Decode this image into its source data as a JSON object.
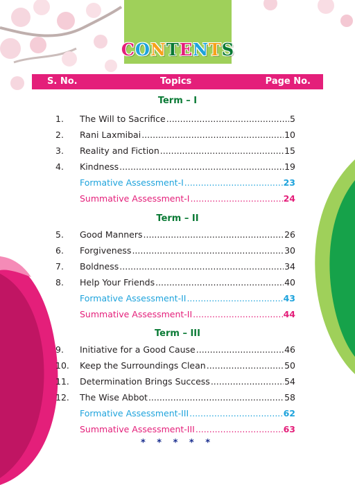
{
  "title": {
    "text": "CONTENTS",
    "letter_colors": [
      "#e41f7a",
      "#1ea3dc",
      "#f7a21b",
      "#0a7a35",
      "#e41f7a",
      "#1ea3dc",
      "#f7a21b",
      "#0a7a35"
    ]
  },
  "header": {
    "sno": "S. No.",
    "topics": "Topics",
    "page": "Page No."
  },
  "terms": [
    {
      "label": "Term – I",
      "rows": [
        {
          "num": "1.",
          "topic": "The Will to Sacrifice",
          "page": "5",
          "style": "normal"
        },
        {
          "num": "2.",
          "topic": "Rani Laxmibai",
          "page": "10",
          "style": "normal"
        },
        {
          "num": "3.",
          "topic": "Reality and Fiction",
          "page": "15",
          "style": "normal"
        },
        {
          "num": "4.",
          "topic": "Kindness",
          "page": "19",
          "style": "normal"
        },
        {
          "num": "",
          "topic": "Formative Assessment-I",
          "page": "23",
          "style": "fa"
        },
        {
          "num": "",
          "topic": "Summative Assessment-I",
          "page": "24",
          "style": "sa"
        }
      ]
    },
    {
      "label": "Term – II",
      "rows": [
        {
          "num": "5.",
          "topic": "Good Manners",
          "page": "26",
          "style": "normal"
        },
        {
          "num": "6.",
          "topic": "Forgiveness",
          "page": "30",
          "style": "normal"
        },
        {
          "num": "7.",
          "topic": "Boldness",
          "page": "34",
          "style": "normal"
        },
        {
          "num": "8.",
          "topic": "Help Your Friends",
          "page": "40",
          "style": "normal"
        },
        {
          "num": "",
          "topic": "Formative Assessment-II",
          "page": "43",
          "style": "fa"
        },
        {
          "num": "",
          "topic": "Summative Assessment-II",
          "page": "44",
          "style": "sa"
        }
      ]
    },
    {
      "label": "Term – III",
      "rows": [
        {
          "num": "9.",
          "topic": "Initiative for a Good Cause",
          "page": "46",
          "style": "normal"
        },
        {
          "num": "10.",
          "topic": "Keep the Surroundings Clean",
          "page": "50",
          "style": "normal"
        },
        {
          "num": "11.",
          "topic": "Determination Brings Success",
          "page": "54",
          "style": "normal"
        },
        {
          "num": "12.",
          "topic": "The Wise Abbot",
          "page": "58",
          "style": "normal"
        },
        {
          "num": "",
          "topic": "Formative Assessment-III",
          "page": "62",
          "style": "fa"
        },
        {
          "num": "",
          "topic": "Summative Assessment-III",
          "page": "63",
          "style": "sa"
        }
      ]
    }
  ],
  "footer_stars": "* * * * *",
  "colors": {
    "header_bar": "#e41f7a",
    "term_heading": "#0a7a35",
    "formative": "#1ea3dc",
    "summative": "#e41f7a",
    "title_box": "#9fd05a"
  }
}
